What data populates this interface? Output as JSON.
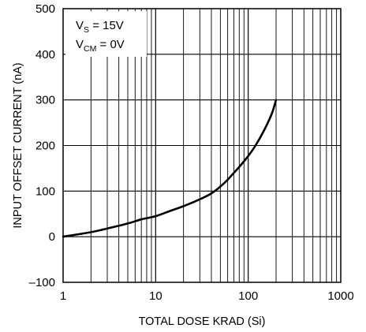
{
  "chart_data": {
    "type": "line",
    "title": "",
    "xlabel": "TOTAL DOSE KRAD (Si)",
    "ylabel": "INPUT OFFSET CURRENT (nA)",
    "xscale": "log",
    "xlim": [
      1,
      1000
    ],
    "ylim": [
      -100,
      500
    ],
    "grid": true,
    "x_ticks": [
      {
        "value": 1,
        "label": "1"
      },
      {
        "value": 10,
        "label": "10"
      },
      {
        "value": 100,
        "label": "100"
      },
      {
        "value": 1000,
        "label": "1000"
      }
    ],
    "y_ticks": [
      {
        "value": -100,
        "label": "–100"
      },
      {
        "value": 0,
        "label": "0"
      },
      {
        "value": 100,
        "label": "100"
      },
      {
        "value": 200,
        "label": "200"
      },
      {
        "value": 300,
        "label": "300"
      },
      {
        "value": 400,
        "label": "400"
      },
      {
        "value": 500,
        "label": "500"
      }
    ],
    "annotation": {
      "line1": {
        "main": "V",
        "sub": "S",
        "rest": " = 15V"
      },
      "line2": {
        "main": "V",
        "sub": "CM",
        "rest": " = 0V"
      }
    },
    "series": [
      {
        "color": "#000000",
        "x": [
          1,
          2,
          3,
          5,
          7,
          10,
          15,
          20,
          30,
          40,
          50,
          60,
          70,
          80,
          100,
          120,
          150,
          180,
          200
        ],
        "y": [
          0,
          10,
          18,
          29,
          38,
          45,
          58,
          67,
          82,
          95,
          110,
          125,
          140,
          153,
          177,
          200,
          235,
          270,
          300
        ]
      }
    ]
  }
}
